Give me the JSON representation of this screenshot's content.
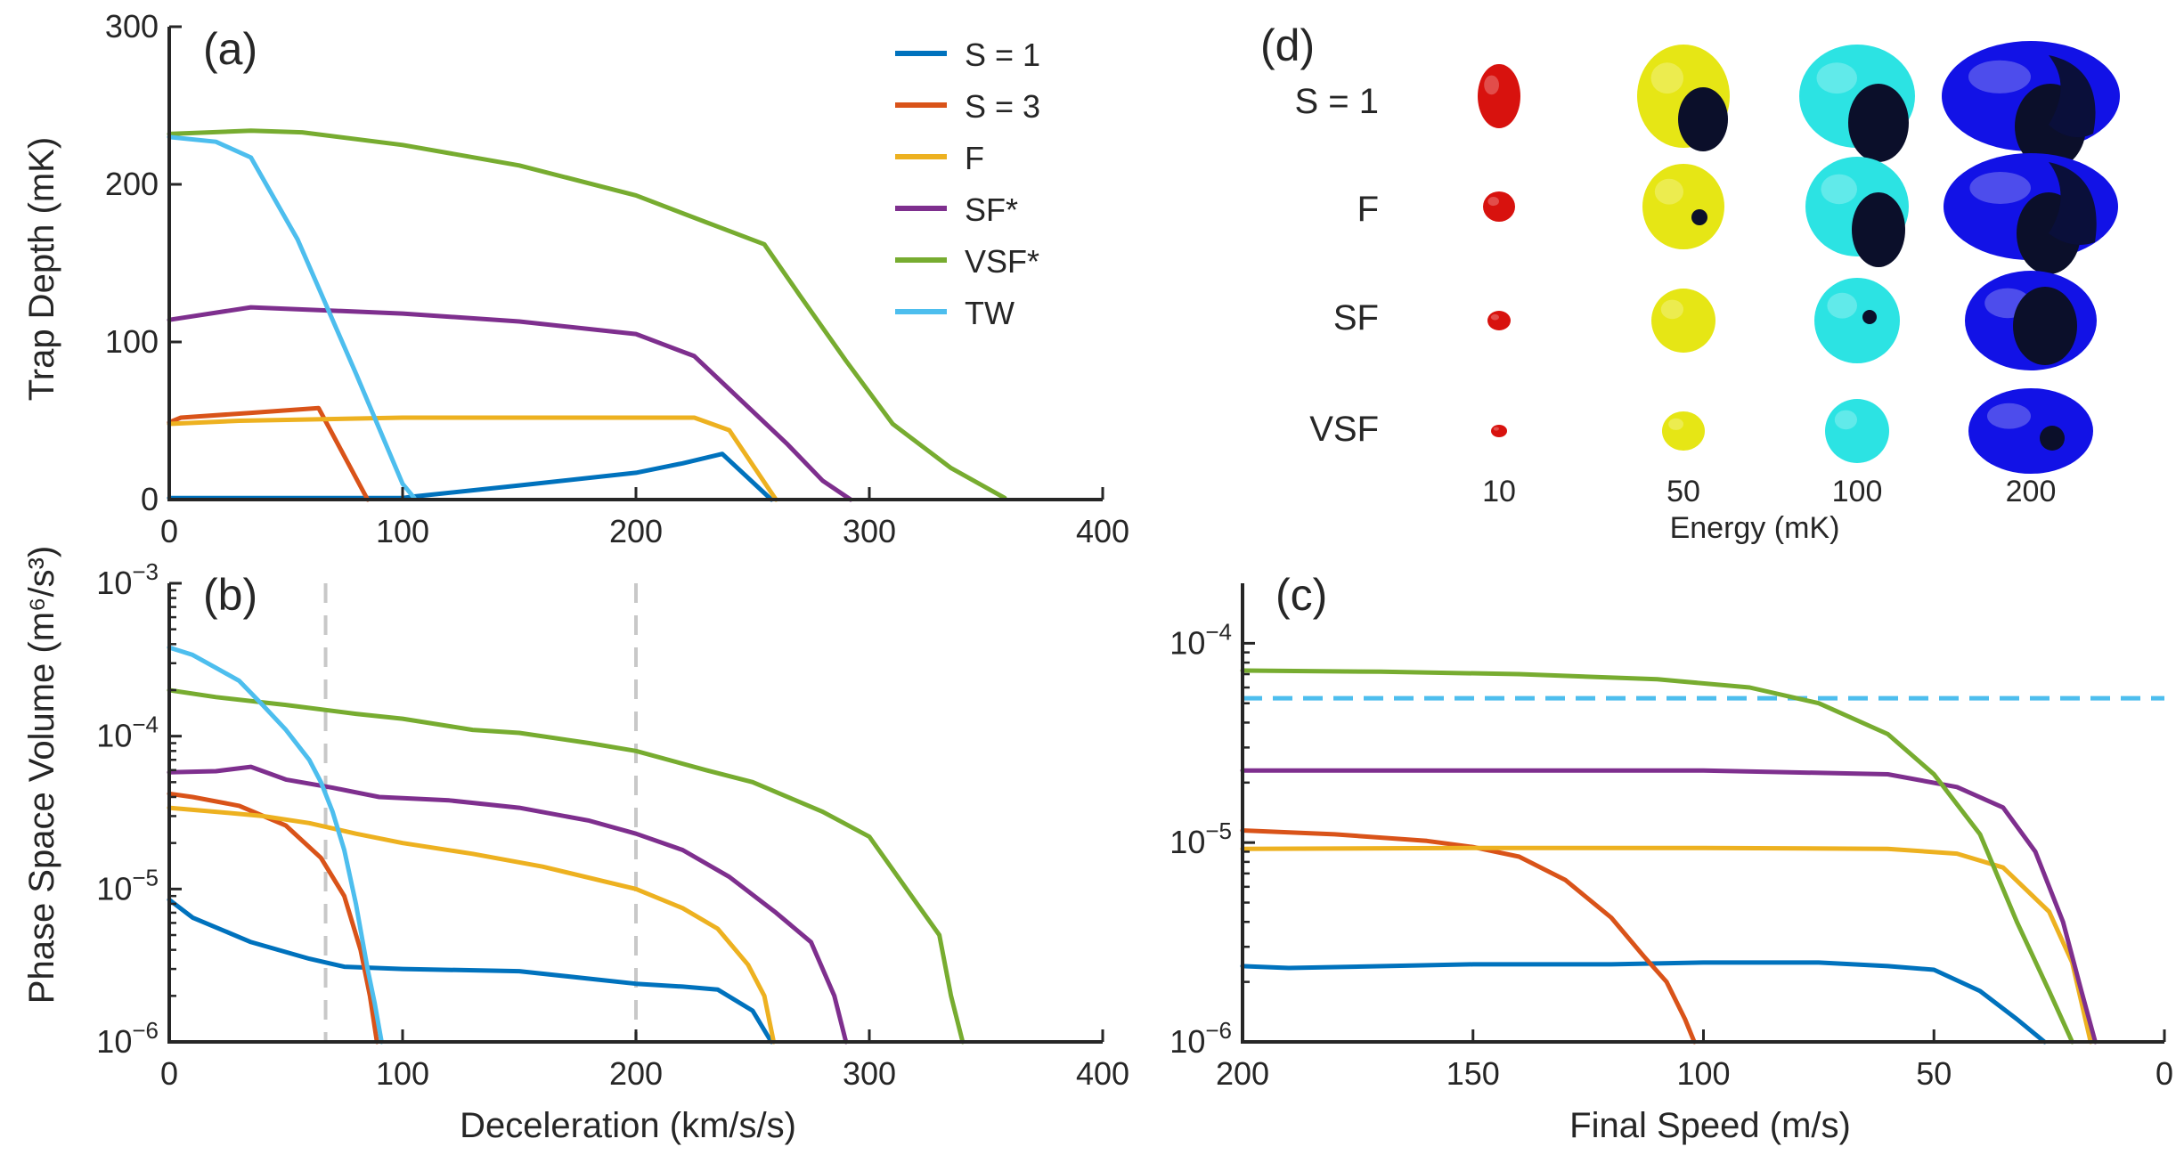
{
  "colors": {
    "s1": "#0072BD",
    "s3": "#D95319",
    "f": "#EDB120",
    "sf": "#7E2F8E",
    "vsf": "#77AC30",
    "tw": "#4DBEEE",
    "guide": "#c8c8c8",
    "axis": "#262626"
  },
  "legend": [
    {
      "key": "s1",
      "label": "S = 1"
    },
    {
      "key": "s3",
      "label": "S = 3"
    },
    {
      "key": "f",
      "label": "F"
    },
    {
      "key": "sf",
      "label": "SF*"
    },
    {
      "key": "vsf",
      "label": "VSF*"
    },
    {
      "key": "tw",
      "label": "TW"
    }
  ],
  "chart_data": [
    {
      "panel": "(a)",
      "type": "line",
      "ylabel": "Trap Depth (mK)",
      "xlim": [
        0,
        400
      ],
      "ylim": [
        0,
        300
      ],
      "xticks": [
        0,
        100,
        200,
        300,
        400
      ],
      "yticks": [
        0,
        100,
        200,
        300
      ],
      "series": [
        {
          "name": "S = 1",
          "key": "s1",
          "x": [
            0,
            100,
            105,
            150,
            200,
            220,
            237,
            258
          ],
          "y": [
            1,
            1,
            2,
            9,
            17,
            23,
            29,
            0
          ]
        },
        {
          "name": "S = 3",
          "key": "s3",
          "x": [
            0,
            5,
            35,
            64,
            85
          ],
          "y": [
            49,
            52,
            55,
            58,
            0
          ]
        },
        {
          "name": "F",
          "key": "f",
          "x": [
            0,
            30,
            100,
            150,
            200,
            225,
            240,
            260
          ],
          "y": [
            48,
            50,
            52,
            52,
            52,
            52,
            44,
            0
          ]
        },
        {
          "name": "SF*",
          "key": "sf",
          "x": [
            0,
            35,
            100,
            150,
            200,
            225,
            240,
            265,
            280,
            292
          ],
          "y": [
            114,
            122,
            118,
            113,
            105,
            91,
            70,
            35,
            12,
            0
          ]
        },
        {
          "name": "VSF*",
          "key": "vsf",
          "x": [
            0,
            35,
            57,
            100,
            150,
            200,
            230,
            255,
            270,
            290,
            310,
            335,
            358
          ],
          "y": [
            232,
            234,
            233,
            225,
            212,
            193,
            176,
            162,
            130,
            88,
            48,
            20,
            1
          ]
        },
        {
          "name": "TW",
          "key": "tw",
          "x": [
            0,
            20,
            35,
            55,
            80,
            100,
            105
          ],
          "y": [
            230,
            227,
            217,
            165,
            80,
            10,
            1
          ]
        }
      ]
    },
    {
      "panel": "(b)",
      "type": "line",
      "xlabel": "Deceleration (km/s/s)",
      "ylabel": "Phase Space Volume (m⁶/s³)",
      "xlim": [
        0,
        400
      ],
      "ylim": [
        1e-06,
        0.001
      ],
      "yscale": "log",
      "xticks": [
        0,
        100,
        200,
        300,
        400
      ],
      "vlines": [
        67,
        200
      ],
      "series": [
        {
          "name": "S = 1",
          "key": "s1",
          "x": [
            0,
            10,
            35,
            60,
            75,
            100,
            150,
            200,
            220,
            235,
            250,
            258
          ],
          "y": [
            8.5e-06,
            6.5e-06,
            4.5e-06,
            3.5e-06,
            3.1e-06,
            3e-06,
            2.9e-06,
            2.4e-06,
            2.3e-06,
            2.2e-06,
            1.6e-06,
            1e-06
          ]
        },
        {
          "name": "S = 3",
          "key": "s3",
          "x": [
            0,
            10,
            30,
            50,
            65,
            75,
            82,
            86,
            89
          ],
          "y": [
            4.2e-05,
            4e-05,
            3.5e-05,
            2.6e-05,
            1.6e-05,
            9e-06,
            4e-06,
            2e-06,
            1e-06
          ]
        },
        {
          "name": "F",
          "key": "f",
          "x": [
            0,
            20,
            40,
            60,
            80,
            100,
            130,
            160,
            200,
            220,
            235,
            248,
            255,
            259
          ],
          "y": [
            3.4e-05,
            3.2e-05,
            3e-05,
            2.7e-05,
            2.3e-05,
            2e-05,
            1.7e-05,
            1.4e-05,
            1e-05,
            7.5e-06,
            5.5e-06,
            3.2e-06,
            2e-06,
            1e-06
          ]
        },
        {
          "name": "SF*",
          "key": "sf",
          "x": [
            0,
            20,
            35,
            50,
            70,
            90,
            120,
            150,
            180,
            200,
            220,
            240,
            260,
            275,
            285,
            290
          ],
          "y": [
            5.8e-05,
            5.9e-05,
            6.3e-05,
            5.2e-05,
            4.6e-05,
            4e-05,
            3.8e-05,
            3.4e-05,
            2.8e-05,
            2.3e-05,
            1.8e-05,
            1.2e-05,
            7e-06,
            4.5e-06,
            2e-06,
            1e-06
          ]
        },
        {
          "name": "VSF*",
          "key": "vsf",
          "x": [
            0,
            20,
            50,
            80,
            100,
            130,
            150,
            180,
            200,
            230,
            250,
            280,
            300,
            330,
            335,
            340
          ],
          "y": [
            0.0002,
            0.00018,
            0.00016,
            0.00014,
            0.00013,
            0.00011,
            0.000105,
            9e-05,
            8e-05,
            6e-05,
            5e-05,
            3.2e-05,
            2.2e-05,
            5e-06,
            2e-06,
            1e-06
          ]
        },
        {
          "name": "TW",
          "key": "tw",
          "x": [
            0,
            10,
            20,
            30,
            40,
            50,
            60,
            65,
            70,
            75,
            80,
            85,
            88,
            91
          ],
          "y": [
            0.00038,
            0.00034,
            0.00028,
            0.00023,
            0.00016,
            0.00011,
            7e-05,
            5e-05,
            3.2e-05,
            1.8e-05,
            8e-06,
            3e-06,
            1.8e-06,
            1e-06
          ]
        }
      ]
    },
    {
      "panel": "(c)",
      "type": "line",
      "xlabel": "Final Speed (m/s)",
      "xlim": [
        200,
        0
      ],
      "ylim": [
        1e-06,
        0.0002
      ],
      "yscale": "log",
      "xticks": [
        200,
        150,
        100,
        50,
        0
      ],
      "hline": 5.3e-05,
      "series": [
        {
          "name": "S = 1",
          "key": "s1",
          "x": [
            200,
            190,
            150,
            120,
            100,
            75,
            60,
            50,
            40,
            32,
            26
          ],
          "y": [
            2.4e-06,
            2.35e-06,
            2.45e-06,
            2.45e-06,
            2.5e-06,
            2.5e-06,
            2.4e-06,
            2.3e-06,
            1.8e-06,
            1.3e-06,
            1e-06
          ]
        },
        {
          "name": "S = 3",
          "key": "s3",
          "x": [
            200,
            180,
            160,
            150,
            140,
            130,
            120,
            113,
            108,
            104,
            102
          ],
          "y": [
            1.15e-05,
            1.1e-05,
            1.02e-05,
            9.5e-06,
            8.5e-06,
            6.5e-06,
            4.2e-06,
            2.7e-06,
            2e-06,
            1.3e-06,
            1e-06
          ]
        },
        {
          "name": "F",
          "key": "f",
          "x": [
            200,
            150,
            100,
            60,
            45,
            35,
            25,
            20,
            16
          ],
          "y": [
            9.3e-06,
            9.4e-06,
            9.4e-06,
            9.3e-06,
            8.8e-06,
            7.5e-06,
            4.5e-06,
            2.5e-06,
            1e-06
          ]
        },
        {
          "name": "SF*",
          "key": "sf",
          "x": [
            200,
            150,
            100,
            60,
            45,
            35,
            28,
            22,
            18,
            15
          ],
          "y": [
            2.3e-05,
            2.3e-05,
            2.3e-05,
            2.2e-05,
            1.9e-05,
            1.5e-05,
            9e-06,
            4e-06,
            1.8e-06,
            1e-06
          ]
        },
        {
          "name": "VSF*",
          "key": "vsf",
          "x": [
            200,
            170,
            140,
            110,
            90,
            75,
            60,
            50,
            40,
            32,
            25,
            20
          ],
          "y": [
            7.3e-05,
            7.2e-05,
            7e-05,
            6.6e-05,
            6e-05,
            5e-05,
            3.5e-05,
            2.2e-05,
            1.1e-05,
            4e-06,
            1.8e-06,
            1e-06
          ]
        }
      ]
    }
  ],
  "panel_d": {
    "label": "(d)",
    "row_labels": [
      "S = 1",
      "F",
      "SF",
      "VSF"
    ],
    "energies": [
      "10",
      "50",
      "100",
      "200"
    ],
    "axis_label": "Energy (mK)",
    "energy_colors": [
      "#d8120e",
      "#e6e615",
      "#2ce3e3",
      "#1212e6"
    ]
  }
}
